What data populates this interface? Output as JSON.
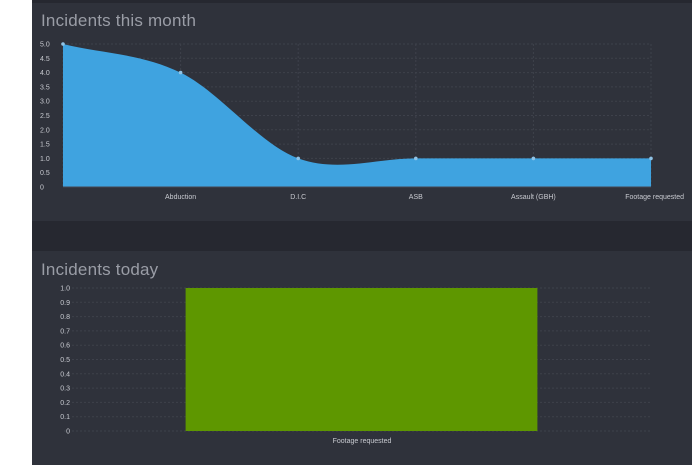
{
  "month_panel": {
    "title": "Incidents this month"
  },
  "today_panel": {
    "title": "Incidents today"
  },
  "chart_data": [
    {
      "type": "area",
      "title": "Incidents this month",
      "categories": [
        "",
        "Abduction",
        "D.I.C",
        "ASB",
        "Assault (GBH)",
        "Footage requested"
      ],
      "values": [
        5,
        4,
        1,
        1,
        1,
        1
      ],
      "y_ticks": [
        "0",
        "0.5",
        "1.0",
        "1.5",
        "2.0",
        "2.5",
        "3.0",
        "3.5",
        "4.0",
        "4.5",
        "5.0"
      ],
      "ylim": [
        0,
        5
      ],
      "grid": true,
      "legend": "none",
      "fill_color": "#3fa3e0",
      "point_color": "#8fc3e6"
    },
    {
      "type": "bar",
      "title": "Incidents today",
      "categories": [
        "Footage requested"
      ],
      "values": [
        1
      ],
      "y_ticks": [
        "0",
        "0.1",
        "0.2",
        "0.3",
        "0.4",
        "0.5",
        "0.6",
        "0.7",
        "0.8",
        "0.9",
        "1.0"
      ],
      "ylim": [
        0,
        1
      ],
      "grid": true,
      "legend": "none",
      "bar_color": "#5e9700"
    }
  ]
}
